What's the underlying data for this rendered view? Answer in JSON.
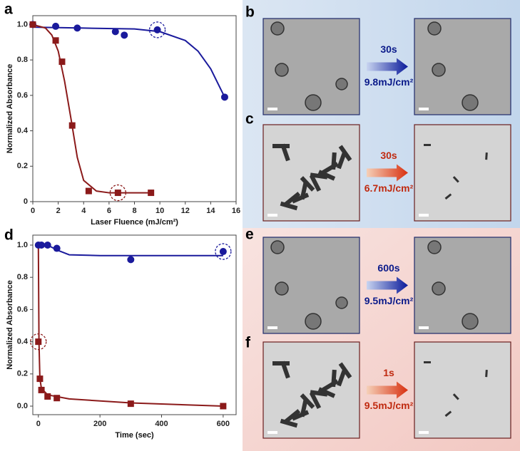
{
  "chart_data": [
    {
      "type": "scatter",
      "panel_label": "a",
      "xlabel": "Laser Fluence (mJ/cm²)",
      "ylabel": "Normalized Absorbance",
      "xlim": [
        0,
        16
      ],
      "xticks": [
        0,
        2,
        4,
        6,
        8,
        10,
        12,
        14,
        16
      ],
      "ylim": [
        0,
        1.05
      ],
      "yticks": [
        0,
        0.2,
        0.4,
        0.6,
        0.8,
        {
          "value": 1,
          "label": "1.0"
        }
      ],
      "series": [
        {
          "color": "#1a1a9c",
          "marker": "circle",
          "x": [
            0,
            1.8,
            3.5,
            6.5,
            7.2,
            9.8,
            15.1
          ],
          "values": [
            1.0,
            0.99,
            0.98,
            0.96,
            0.94,
            0.97,
            0.59
          ]
        },
        {
          "color": "#8b1a1a",
          "marker": "square",
          "x": [
            0,
            1.8,
            2.3,
            3.1,
            4.4,
            6.7,
            9.3
          ],
          "values": [
            1.0,
            0.91,
            0.79,
            0.43,
            0.06,
            0.05,
            0.05
          ]
        },
        {
          "color": "#1a1a9c",
          "x": [
            0,
            4,
            8,
            10,
            12,
            13,
            14,
            15.1
          ],
          "values": [
            0.985,
            0.98,
            0.975,
            0.96,
            0.91,
            0.85,
            0.75,
            0.59
          ]
        },
        {
          "color": "#8b1a1a",
          "x": [
            0,
            1,
            1.5,
            2,
            2.5,
            3,
            3.5,
            4,
            5,
            6,
            9.3
          ],
          "values": [
            1.0,
            0.98,
            0.94,
            0.85,
            0.68,
            0.47,
            0.25,
            0.12,
            0.06,
            0.05,
            0.05
          ]
        }
      ],
      "highlights": [
        {
          "series": 0,
          "index": 5
        },
        {
          "series": 1,
          "index": 5
        }
      ]
    },
    {
      "type": "scatter",
      "panel_label": "d",
      "xlabel": "Time (sec)",
      "ylabel": "Normalized Absorbance",
      "xlim": [
        -18,
        642
      ],
      "xticks": [
        0,
        200,
        400,
        600
      ],
      "ylim": [
        -0.053,
        1.062
      ],
      "yticks": [
        {
          "value": 0,
          "label": "0.0"
        },
        0.2,
        0.4,
        0.6,
        0.8,
        {
          "value": 1,
          "label": "1.0"
        }
      ],
      "series": [
        {
          "color": "#1a1a9c",
          "marker": "circle",
          "x": [
            0,
            10,
            30,
            60,
            300,
            600
          ],
          "values": [
            1.0,
            1.0,
            1.0,
            0.98,
            0.91,
            0.96
          ]
        },
        {
          "color": "#8b1a1a",
          "marker": "square",
          "x": [
            0,
            5,
            10,
            30,
            60,
            300,
            600
          ],
          "values": [
            0.4,
            0.17,
            0.1,
            0.06,
            0.05,
            0.015,
            0.0
          ]
        },
        {
          "color": "#1a1a9c",
          "x": [
            0,
            30,
            60,
            100,
            200,
            600
          ],
          "values": [
            1.0,
            1.0,
            0.97,
            0.94,
            0.935,
            0.935
          ]
        },
        {
          "color": "#8b1a1a",
          "x": [
            0,
            2,
            5,
            10,
            30,
            100,
            300,
            600
          ],
          "values": [
            1.0,
            0.4,
            0.17,
            0.11,
            0.07,
            0.045,
            0.02,
            0.0
          ]
        }
      ],
      "highlights": [
        {
          "series": 0,
          "index": 5
        },
        {
          "series": 1,
          "index": 0
        }
      ]
    }
  ],
  "panels": [
    {
      "label": "b",
      "time": "30s",
      "fluence": "9.8mJ/cm²"
    },
    {
      "label": "c",
      "time": "30s",
      "fluence": "6.7mJ/cm²"
    },
    {
      "label": "e",
      "time": "600s",
      "fluence": "9.5mJ/cm²"
    },
    {
      "label": "f",
      "time": "1s",
      "fluence": "9.5mJ/cm²"
    }
  ]
}
